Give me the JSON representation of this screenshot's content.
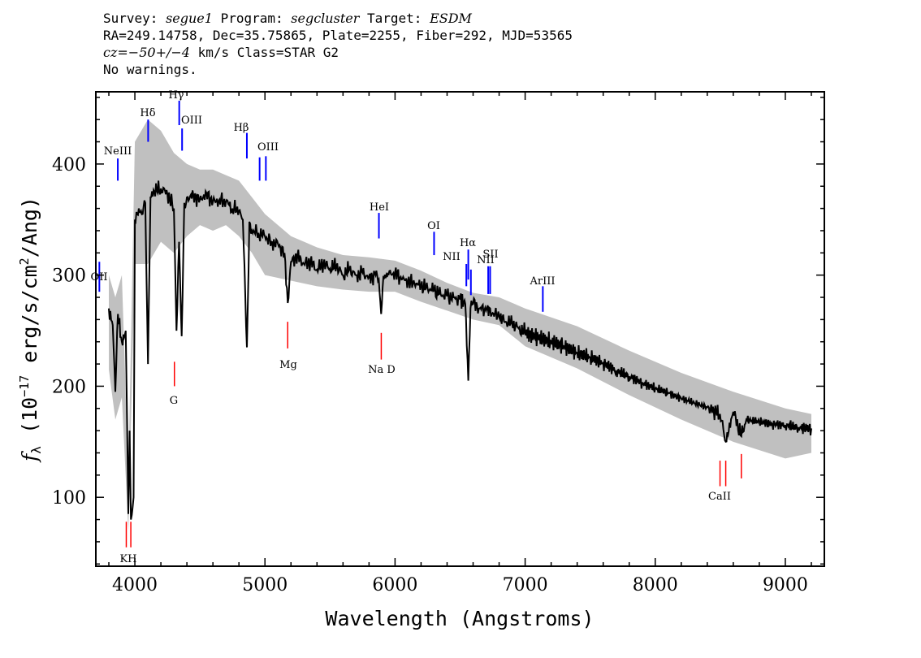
{
  "header": {
    "survey_label": "Survey:",
    "survey": "segue1",
    "program_label": "Program:",
    "program": "segcluster",
    "target_label": "Target:",
    "target": "ESDM",
    "line2": "RA=249.14758, Dec=35.75865, Plate=2255, Fiber=292, MJD=53565",
    "cz_label": "cz=",
    "cz_value": "−50+/−4",
    "cz_rest": " km/s Class=STAR G2",
    "line4": "No warnings."
  },
  "chart_data": {
    "type": "line",
    "xlabel": "Wavelength (Angstroms)",
    "ylabel": "f_λ (10^-17 erg/s/cm^2/Ang)",
    "xlim": [
      3700,
      9300
    ],
    "ylim": [
      38,
      465
    ],
    "x_ticks": [
      4000,
      5000,
      6000,
      7000,
      8000,
      9000
    ],
    "y_ticks": [
      100,
      200,
      300,
      400
    ],
    "series": [
      {
        "color": "#000000",
        "x": [
          3800,
          3830,
          3850,
          3870,
          3900,
          3930,
          3950,
          3960,
          3970,
          3990,
          4000,
          4030,
          4060,
          4080,
          4101,
          4120,
          4150,
          4200,
          4250,
          4300,
          4320,
          4340,
          4360,
          4380,
          4400,
          4450,
          4500,
          4550,
          4600,
          4650,
          4700,
          4750,
          4800,
          4830,
          4861,
          4880,
          4900,
          4950,
          5000,
          5050,
          5100,
          5150,
          5175,
          5200,
          5250,
          5300,
          5350,
          5400,
          5450,
          5500,
          5550,
          5600,
          5650,
          5700,
          5750,
          5800,
          5850,
          5875,
          5893,
          5910,
          5950,
          6000,
          6050,
          6100,
          6150,
          6200,
          6250,
          6300,
          6350,
          6400,
          6450,
          6500,
          6540,
          6563,
          6580,
          6600,
          6650,
          6700,
          6750,
          6800,
          6850,
          6900,
          6950,
          7000,
          7100,
          7200,
          7300,
          7400,
          7500,
          7600,
          7700,
          7800,
          7900,
          8000,
          8100,
          8200,
          8300,
          8400,
          8498,
          8542,
          8600,
          8662,
          8700,
          8800,
          8900,
          9000,
          9100,
          9200
        ],
        "values": [
          270,
          255,
          195,
          265,
          240,
          250,
          85,
          160,
          80,
          100,
          350,
          360,
          355,
          365,
          220,
          370,
          375,
          378,
          373,
          360,
          250,
          330,
          245,
          365,
          370,
          372,
          368,
          374,
          366,
          368,
          366,
          360,
          358,
          350,
          235,
          348,
          340,
          338,
          335,
          330,
          328,
          320,
          275,
          312,
          318,
          310,
          312,
          305,
          310,
          306,
          308,
          300,
          305,
          300,
          302,
          298,
          300,
          296,
          265,
          298,
          300,
          302,
          296,
          294,
          292,
          290,
          288,
          286,
          283,
          281,
          280,
          278,
          274,
          205,
          270,
          274,
          270,
          268,
          266,
          262,
          258,
          256,
          252,
          248,
          244,
          240,
          236,
          230,
          226,
          221,
          214,
          209,
          203,
          198,
          194,
          189,
          185,
          181,
          175,
          150,
          177,
          155,
          170,
          168,
          166,
          165,
          163,
          162
        ]
      },
      {
        "color": "#c0c0c0",
        "x": [
          3800,
          3850,
          3900,
          3950,
          4000,
          4100,
          4200,
          4300,
          4400,
          4500,
          4600,
          4700,
          4800,
          4900,
          5000,
          5200,
          5400,
          5600,
          5800,
          6000,
          6200,
          6400,
          6600,
          6800,
          7000,
          7400,
          7800,
          8200,
          8600,
          9000,
          9200
        ],
        "values": [
          300,
          280,
          300,
          120,
          420,
          440,
          430,
          410,
          400,
          395,
          395,
          390,
          385,
          370,
          355,
          335,
          325,
          318,
          316,
          313,
          304,
          293,
          284,
          280,
          270,
          254,
          232,
          212,
          195,
          180,
          175
        ]
      },
      {
        "color": "#c0c0c0",
        "x": [
          3800,
          3850,
          3900,
          3950,
          4000,
          4100,
          4200,
          4300,
          4400,
          4500,
          4600,
          4700,
          4800,
          4900,
          5000,
          5200,
          5400,
          5600,
          5800,
          6000,
          6200,
          6400,
          6600,
          6800,
          7000,
          7400,
          7800,
          8200,
          8600,
          9000,
          9200
        ],
        "values": [
          215,
          170,
          190,
          70,
          310,
          310,
          330,
          320,
          335,
          345,
          340,
          345,
          335,
          320,
          300,
          295,
          290,
          287,
          285,
          285,
          276,
          268,
          260,
          255,
          236,
          216,
          192,
          170,
          150,
          135,
          140
        ]
      }
    ],
    "emission_lines": [
      {
        "name": "NeIII",
        "x": 3869,
        "y": [
          385,
          405
        ]
      },
      {
        "name": "Hδ",
        "x": 4102,
        "y": [
          420,
          440
        ]
      },
      {
        "name": "Hγ",
        "x": 4341,
        "y": [
          435,
          457
        ]
      },
      {
        "name": "OIII",
        "x": 4363,
        "y": [
          412,
          432
        ]
      },
      {
        "name": "Hβ",
        "x": 4861,
        "y": [
          405,
          428
        ]
      },
      {
        "name": "OIII",
        "x": 4959,
        "y": [
          385,
          406
        ]
      },
      {
        "name": "OIII",
        "x": 5007,
        "y": [
          385,
          407
        ]
      },
      {
        "name": "HeI",
        "x": 5876,
        "y": [
          333,
          356
        ]
      },
      {
        "name": "OI",
        "x": 6300,
        "y": [
          318,
          339
        ]
      },
      {
        "name": "NII",
        "x": 6548,
        "y": [
          290,
          310
        ]
      },
      {
        "name": "Hα",
        "x": 6563,
        "y": [
          296,
          323
        ]
      },
      {
        "name": "NII",
        "x": 6583,
        "y": [
          282,
          305
        ]
      },
      {
        "name": "SII",
        "x": 6716,
        "y": [
          283,
          308
        ]
      },
      {
        "name": "SII",
        "x": 6731,
        "y": [
          283,
          308
        ]
      },
      {
        "name": "ArIII",
        "x": 7136,
        "y": [
          267,
          290
        ]
      },
      {
        "name": "OII",
        "x": 3727,
        "y": [
          285,
          312
        ]
      }
    ],
    "absorption_lines": [
      {
        "name": "K",
        "x": 3934,
        "y": [
          55,
          78
        ]
      },
      {
        "name": "H",
        "x": 3969,
        "y": [
          55,
          78
        ]
      },
      {
        "name": "G",
        "x": 4304,
        "y": [
          200,
          222
        ]
      },
      {
        "name": "Mg",
        "x": 5175,
        "y": [
          234,
          258
        ]
      },
      {
        "name": "Na",
        "x": 5894,
        "y": [
          224,
          248
        ]
      },
      {
        "name": "CaII",
        "x": 8498,
        "y": [
          110,
          133
        ]
      },
      {
        "name": "CaII",
        "x": 8542,
        "y": [
          110,
          133
        ]
      },
      {
        "name": "CaII",
        "x": 8662,
        "y": [
          117,
          139
        ]
      }
    ],
    "labels": {
      "NeIII": "NeIII",
      "Hdelta": "Hδ",
      "Hgamma": "Hγ",
      "OIII_a": "OIII",
      "Hbeta": "Hβ",
      "OIII_b": "OIII",
      "HeI": "HeI",
      "OI": "OI",
      "NII_a": "NII",
      "Halpha": "Hα",
      "NII_b": "NII",
      "SII": "SII",
      "ArIII": "ArIII",
      "OII": "OII",
      "KH": "KH",
      "G": "G",
      "Mg": "Mg",
      "NaD": "Na  D",
      "CaII": "CaII"
    },
    "colors": {
      "emission": "#0000ff",
      "absorption": "#ff0000",
      "spectrum": "#000000",
      "error": "#c0c0c0"
    }
  }
}
